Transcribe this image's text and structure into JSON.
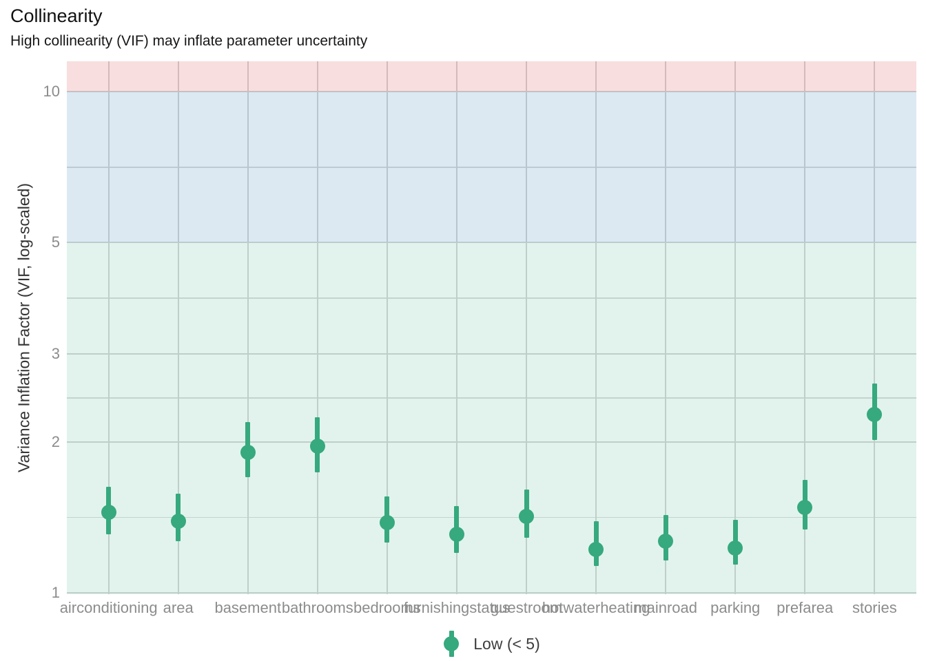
{
  "title": "Collinearity",
  "subtitle": "High collinearity (VIF) may inflate parameter uncertainty",
  "legend": {
    "label": "Low (< 5)"
  },
  "colors": {
    "point_low": "#36a97e",
    "band_low_fill": "rgba(58,175,133,0.15)",
    "band_moderate_fill": "rgba(27,108,168,0.15)",
    "band_high_fill": "rgba(205,32,31,0.15)",
    "gridline": "#d5d5d5",
    "axis_tick_text": "#8c8c8c",
    "axis_title_text": "#333333",
    "title_text": "#111111",
    "legend_text": "#3d3d3d"
  },
  "chart_data": {
    "type": "scatter",
    "subtype": "pointrange",
    "title": "Collinearity",
    "subtitle": "High collinearity (VIF) may inflate parameter uncertainty",
    "xlabel": "",
    "ylabel": "Variance Inflation Factor (VIF, log-scaled)",
    "yscale": "log",
    "ylim": [
      0.994,
      11.51
    ],
    "yticks": [
      1,
      2,
      3,
      5,
      10
    ],
    "yticks_minor": [
      1.414,
      2.449,
      3.873,
      7.071
    ],
    "grid": true,
    "legend_position": "bottom",
    "categories": [
      "airconditioning",
      "area",
      "basement",
      "bathrooms",
      "bedrooms",
      "furnishingstatus",
      "guestroom",
      "hotwaterheating",
      "mainroad",
      "parking",
      "prefarea",
      "stories"
    ],
    "bands": [
      {
        "name": "low",
        "from": null,
        "to": 5,
        "fill": "rgba(58,175,133,0.15)"
      },
      {
        "name": "moderate",
        "from": 5,
        "to": 10,
        "fill": "rgba(27,108,168,0.15)"
      },
      {
        "name": "high",
        "from": 10,
        "to": null,
        "fill": "rgba(205,32,31,0.15)"
      }
    ],
    "series": [
      {
        "name": "Low (< 5)",
        "color": "#36a97e",
        "values": [
          1.45,
          1.39,
          1.91,
          1.96,
          1.38,
          1.31,
          1.42,
          1.22,
          1.27,
          1.23,
          1.48,
          2.27
        ],
        "ci_low": [
          1.31,
          1.27,
          1.7,
          1.74,
          1.26,
          1.2,
          1.29,
          1.13,
          1.16,
          1.14,
          1.34,
          2.02
        ],
        "ci_high": [
          1.63,
          1.58,
          2.19,
          2.24,
          1.56,
          1.49,
          1.61,
          1.39,
          1.43,
          1.4,
          1.68,
          2.62
        ]
      }
    ]
  }
}
